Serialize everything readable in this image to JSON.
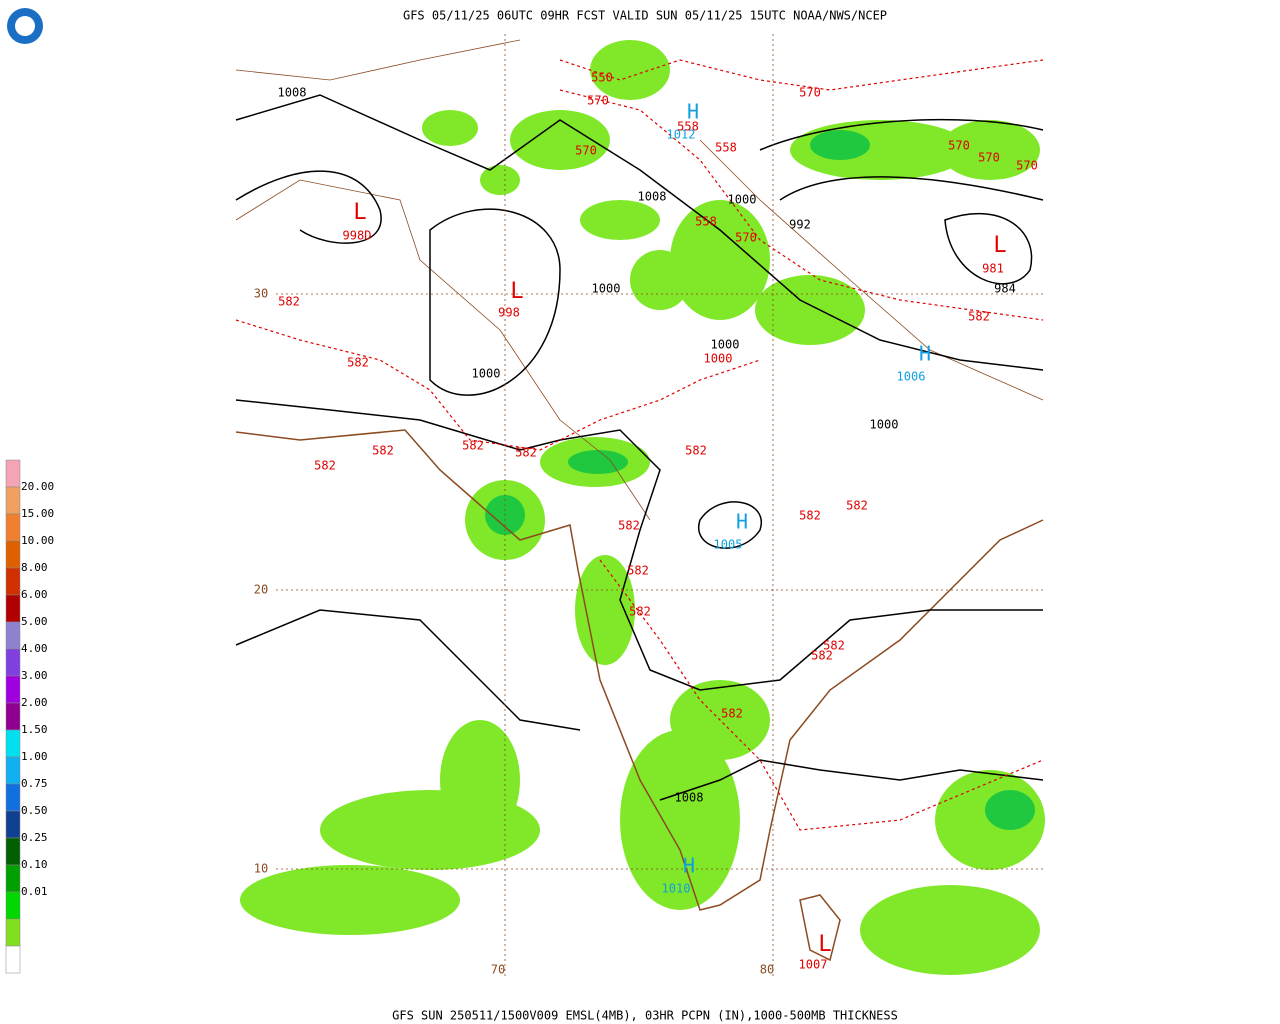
{
  "header": {
    "title": "GFS 05/11/25 06UTC 09HR FCST VALID SUN 05/11/25 15UTC NOAA/NWS/NCEP"
  },
  "footer": {
    "caption": "GFS SUN 250511/1500V009 EMSL(4MB), 03HR PCPN (IN),1000-500MB THICKNESS"
  },
  "legend": {
    "labels": [
      "20.00",
      "15.00",
      "10.00",
      "8.00",
      "6.00",
      "5.00",
      "4.00",
      "3.00",
      "2.00",
      "1.50",
      "1.00",
      "0.75",
      "0.50",
      "0.25",
      "0.10",
      "0.01"
    ],
    "colors": [
      "#f4a4b4",
      "#f0a060",
      "#f08030",
      "#e06000",
      "#d03000",
      "#b00000",
      "#9080d0",
      "#8040e0",
      "#a000e0",
      "#900090",
      "#00e0f0",
      "#10b0f0",
      "#1070e0",
      "#104090",
      "#006000",
      "#00a000",
      "#00d800",
      "#80e020",
      "#ffffff"
    ]
  },
  "map_labels": [
    "1008",
    "550",
    "570",
    "H",
    "1012",
    "558",
    "558",
    "570",
    "570",
    "1008",
    "1000",
    "992",
    "558",
    "570",
    "L",
    "998D",
    "L",
    "981",
    "984",
    "570",
    "570",
    "570",
    "1000",
    "30",
    "582",
    "L",
    "998",
    "582",
    "1000",
    "1000",
    "H",
    "1006",
    "582",
    "1000",
    "1000",
    "582",
    "582",
    "582",
    "582",
    "582",
    "582",
    "H",
    "1005",
    "582",
    "582",
    "582",
    "582",
    "20",
    "582",
    "582",
    "582",
    "1008",
    "H",
    "1010",
    "10",
    "L",
    "1007",
    "70",
    "80"
  ]
}
